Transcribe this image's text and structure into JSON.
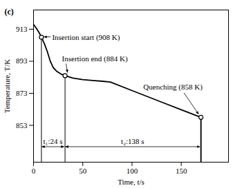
{
  "chart_data": {
    "type": "line",
    "title": "(c)",
    "xlabel": "Time, t/s",
    "ylabel": "Temperature, T/K",
    "x": [
      0,
      3,
      6,
      8,
      11,
      14,
      17,
      20,
      24,
      28,
      32,
      40,
      50,
      60,
      70,
      78,
      100,
      130,
      150,
      170,
      170
    ],
    "values": [
      916,
      913.5,
      910.5,
      908,
      904,
      899,
      893,
      889,
      886.5,
      885,
      884,
      882.5,
      881.5,
      881,
      880.5,
      880,
      874.7,
      867.5,
      862.7,
      858,
      830
    ],
    "color": "#000000",
    "grid": false,
    "xlim": [
      0,
      198
    ],
    "ylim": [
      830,
      925
    ],
    "xticks": [
      0,
      50,
      100,
      150
    ],
    "yticks": [
      853,
      873,
      893,
      913
    ],
    "annotations": [
      {
        "text": "Insertion start (908 K)",
        "x": 8,
        "y": 908
      },
      {
        "text": "Insertion end (884 K)",
        "x": 32,
        "y": 884
      },
      {
        "text": "Quenching (858 K)",
        "x": 170,
        "y": 858
      }
    ],
    "spans": [
      {
        "label": "t₁:24 s",
        "from": 8,
        "to": 32
      },
      {
        "label": "t₂:138 s",
        "from": 32,
        "to": 170
      }
    ]
  }
}
